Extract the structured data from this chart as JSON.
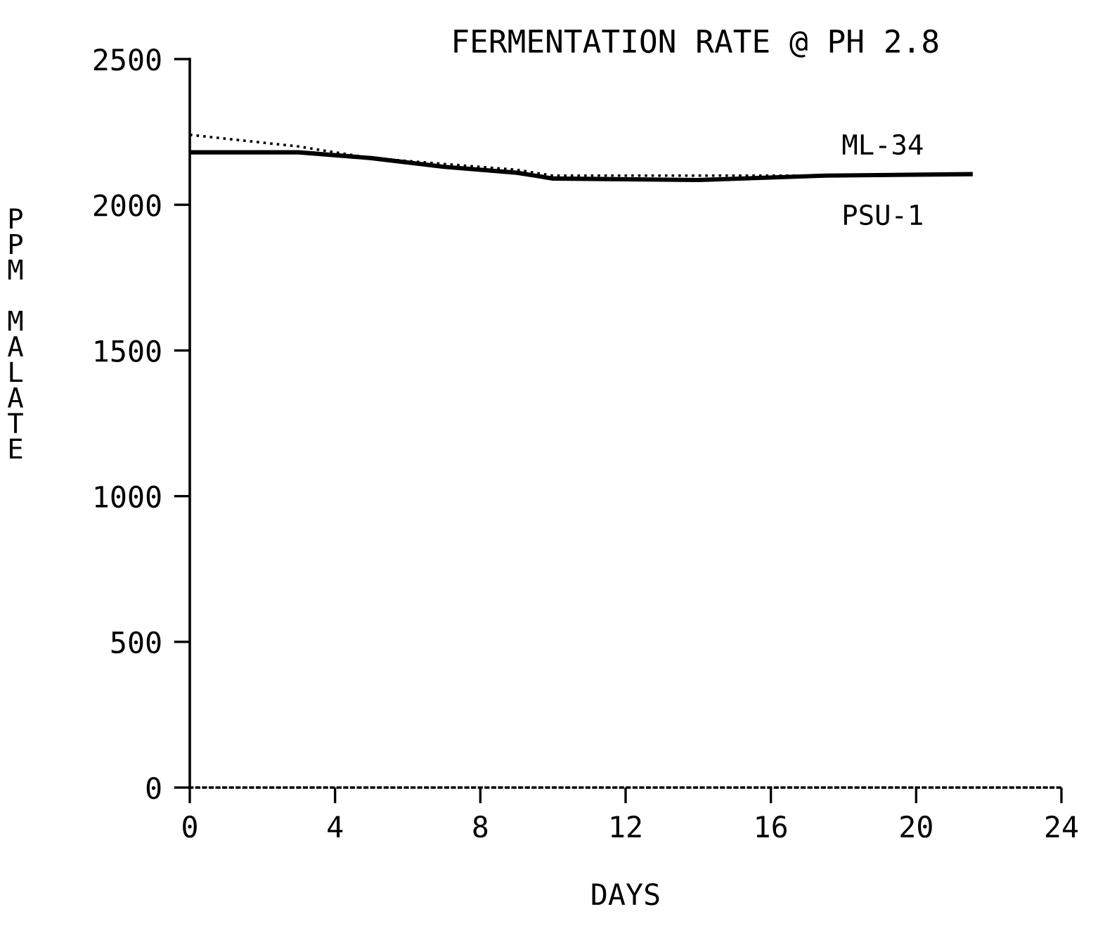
{
  "chart_data": {
    "type": "line",
    "title": "FERMENTATION RATE @ PH 2.8",
    "xlabel": "DAYS",
    "ylabel": "PPM MALATE",
    "x": [
      0,
      3,
      5,
      7,
      9,
      10,
      14,
      17.5,
      21.5
    ],
    "series": [
      {
        "name": "ML-34",
        "color": "#000000",
        "line_style": "solid",
        "values": [
          2180,
          2180,
          2160,
          2130,
          2110,
          2090,
          2085,
          2100,
          2105
        ]
      },
      {
        "name": "PSU-1",
        "color": "#000000",
        "line_style": "dotted",
        "values": [
          2240,
          2200,
          2160,
          2140,
          2120,
          2100,
          2100,
          2100,
          2105
        ]
      }
    ],
    "xlim": [
      0,
      24
    ],
    "xticks": [
      0,
      4,
      8,
      12,
      16,
      20,
      24
    ],
    "ylim": [
      0,
      2500
    ],
    "yticks": [
      0,
      500,
      1000,
      1500,
      2000,
      2500
    ],
    "grid": false,
    "legend": false
  }
}
